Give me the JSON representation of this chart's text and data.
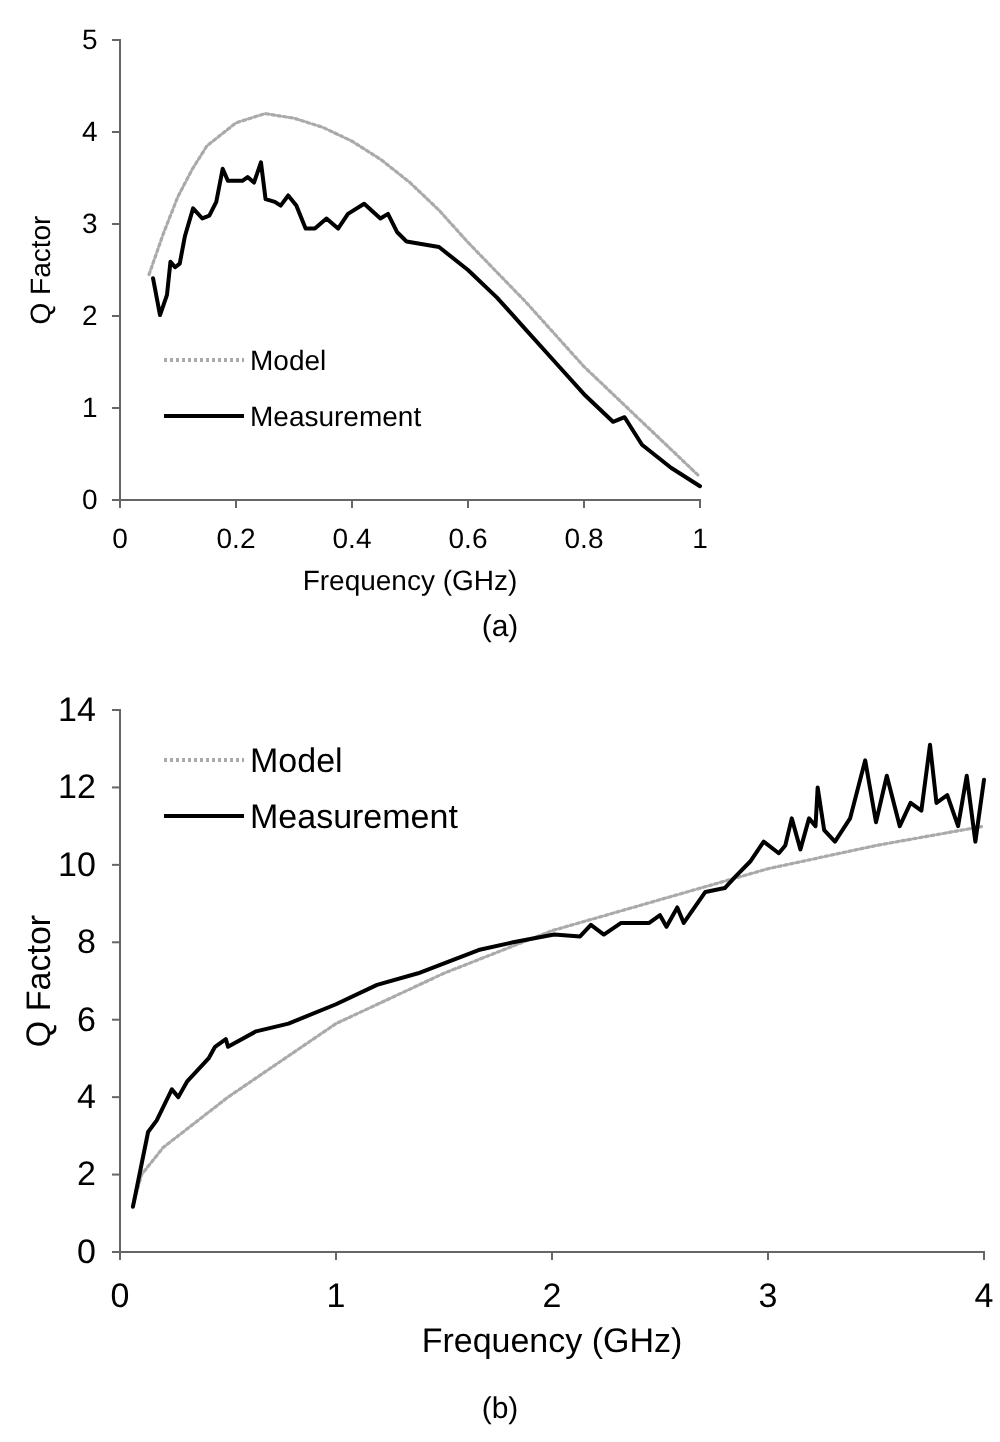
{
  "chart_data": [
    {
      "type": "line",
      "xlabel": "Frequency (GHz)",
      "ylabel": "Q Factor",
      "xlim": [
        0,
        1
      ],
      "xticks": [
        0,
        0.2,
        0.4,
        0.6,
        0.8,
        1
      ],
      "ylim": [
        0,
        5
      ],
      "yticks": [
        0,
        1,
        2,
        3,
        4,
        5
      ],
      "grid": false,
      "legend": "bottom left",
      "annotations": [
        "(a)"
      ],
      "series": [
        {
          "name": "Model",
          "color": "#aaaaaa",
          "line_style": "dotted",
          "x": [
            0.05,
            0.075,
            0.1,
            0.125,
            0.15,
            0.2,
            0.25,
            0.3,
            0.35,
            0.4,
            0.45,
            0.5,
            0.55,
            0.6,
            0.7,
            0.8,
            0.9,
            1.0
          ],
          "values": [
            2.45,
            2.9,
            3.3,
            3.6,
            3.85,
            4.1,
            4.2,
            4.15,
            4.05,
            3.9,
            3.7,
            3.45,
            3.15,
            2.8,
            2.15,
            1.45,
            0.85,
            0.25
          ]
        },
        {
          "name": "Measurement",
          "color": "#000000",
          "line_style": "solid",
          "x": [
            0.057,
            0.069,
            0.081,
            0.087,
            0.095,
            0.103,
            0.112,
            0.126,
            0.142,
            0.154,
            0.166,
            0.177,
            0.186,
            0.211,
            0.22,
            0.231,
            0.243,
            0.251,
            0.267,
            0.277,
            0.29,
            0.304,
            0.32,
            0.336,
            0.356,
            0.376,
            0.393,
            0.421,
            0.449,
            0.462,
            0.478,
            0.494,
            0.55,
            0.6,
            0.65,
            0.7,
            0.75,
            0.8,
            0.85,
            0.87,
            0.9,
            0.95,
            1.0
          ],
          "values": [
            2.41,
            2.01,
            2.23,
            2.59,
            2.53,
            2.57,
            2.87,
            3.17,
            3.06,
            3.09,
            3.24,
            3.6,
            3.47,
            3.47,
            3.51,
            3.45,
            3.67,
            3.27,
            3.24,
            3.2,
            3.31,
            3.2,
            2.95,
            2.95,
            3.06,
            2.95,
            3.11,
            3.22,
            3.06,
            3.11,
            2.91,
            2.81,
            2.75,
            2.5,
            2.2,
            1.85,
            1.5,
            1.15,
            0.85,
            0.9,
            0.6,
            0.35,
            0.15
          ]
        }
      ]
    },
    {
      "type": "line",
      "xlabel": "Frequency (GHz)",
      "ylabel": "Q Factor",
      "xlim": [
        0,
        4
      ],
      "xticks": [
        0,
        1,
        2,
        3,
        4
      ],
      "ylim": [
        0,
        14
      ],
      "yticks": [
        0,
        2,
        4,
        6,
        8,
        10,
        12,
        14
      ],
      "grid": false,
      "legend": "top left",
      "annotations": [
        "(b)"
      ],
      "series": [
        {
          "name": "Model",
          "color": "#aaaaaa",
          "line_style": "dotted",
          "x": [
            0.06,
            0.1,
            0.2,
            0.5,
            1.0,
            1.5,
            2.0,
            2.5,
            3.0,
            3.5,
            4.0
          ],
          "values": [
            1.2,
            2.0,
            2.7,
            4.0,
            5.9,
            7.2,
            8.3,
            9.1,
            9.9,
            10.5,
            11.0
          ]
        },
        {
          "name": "Measurement",
          "color": "#000000",
          "line_style": "solid",
          "x": [
            0.06,
            0.13,
            0.17,
            0.24,
            0.27,
            0.31,
            0.41,
            0.44,
            0.49,
            0.5,
            0.63,
            0.78,
            1.0,
            1.19,
            1.38,
            1.66,
            1.82,
            2.01,
            2.13,
            2.18,
            2.24,
            2.32,
            2.45,
            2.5,
            2.53,
            2.58,
            2.61,
            2.71,
            2.8,
            2.85,
            2.92,
            2.98,
            3.05,
            3.08,
            3.11,
            3.15,
            3.19,
            3.22,
            3.23,
            3.26,
            3.31,
            3.38,
            3.45,
            3.5,
            3.55,
            3.61,
            3.66,
            3.71,
            3.75,
            3.78,
            3.83,
            3.88,
            3.92,
            3.96,
            4.0
          ],
          "values": [
            1.17,
            3.1,
            3.4,
            4.2,
            4.0,
            4.4,
            5.0,
            5.3,
            5.5,
            5.3,
            5.7,
            5.9,
            6.4,
            6.9,
            7.2,
            7.8,
            8.0,
            8.2,
            8.15,
            8.45,
            8.2,
            8.5,
            8.5,
            8.7,
            8.4,
            8.9,
            8.5,
            9.3,
            9.4,
            9.7,
            10.1,
            10.6,
            10.3,
            10.5,
            11.2,
            10.4,
            11.2,
            11.0,
            12.0,
            10.9,
            10.6,
            11.2,
            12.7,
            11.1,
            12.3,
            11.0,
            11.6,
            11.4,
            13.1,
            11.6,
            11.8,
            11.0,
            12.3,
            10.6,
            12.2
          ]
        }
      ]
    }
  ]
}
